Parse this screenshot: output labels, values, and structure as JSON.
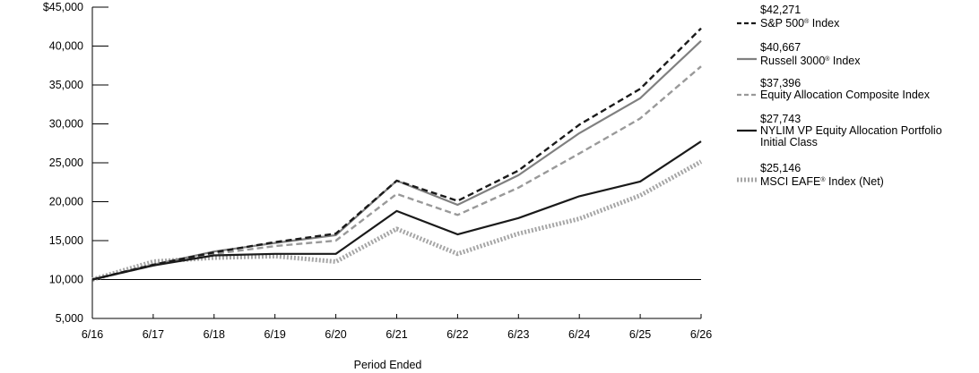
{
  "chart_data": {
    "type": "line",
    "xlabel": "Period Ended",
    "ylabel": "",
    "categories": [
      "6/16",
      "6/17",
      "6/18",
      "6/19",
      "6/20",
      "6/21",
      "6/22",
      "6/23",
      "6/24",
      "6/25",
      "6/26"
    ],
    "ylim": [
      5000,
      45000
    ],
    "y_ticks": [
      5000,
      10000,
      15000,
      20000,
      25000,
      30000,
      35000,
      40000,
      45000
    ],
    "y_tick_labels": [
      "5,000",
      "10,000",
      "15,000",
      "20,000",
      "25,000",
      "30,000",
      "35,000",
      "40,000",
      "$45,000"
    ],
    "grid": false,
    "reference_line": 10000,
    "legend_position": "right",
    "series": [
      {
        "name": "S&P 500® Index",
        "end_label": "$42,271",
        "color": "#1a1a1a",
        "style": "dashed",
        "values": [
          10000,
          11900,
          13500,
          14800,
          15900,
          22700,
          20100,
          24000,
          29900,
          34500,
          42271
        ]
      },
      {
        "name": "Russell 3000®  Index",
        "end_label": "$40,667",
        "color": "#808080",
        "style": "solid",
        "values": [
          10000,
          11900,
          13600,
          14700,
          15700,
          22700,
          19600,
          23400,
          28800,
          33300,
          40667
        ]
      },
      {
        "name": "Equity Allocation Composite Index",
        "end_label": "$37,396",
        "color": "#999999",
        "style": "dashed",
        "values": [
          10000,
          11800,
          13300,
          14300,
          15000,
          21000,
          18300,
          21800,
          26200,
          30700,
          37396
        ]
      },
      {
        "name": "NYLIM VP Equity Allocation Portfolio Initial Class",
        "end_label": "$27,743",
        "color": "#1a1a1a",
        "style": "solid",
        "values": [
          10000,
          11800,
          13100,
          13300,
          13300,
          18800,
          15800,
          17900,
          20700,
          22600,
          27743
        ]
      },
      {
        "name": "MSCI EAFE® Index (Net)",
        "end_label": "$25,146",
        "color": "#a6a6a6",
        "style": "dotted",
        "values": [
          10000,
          12300,
          12800,
          13000,
          12300,
          16500,
          13300,
          15900,
          17800,
          20800,
          25146
        ]
      }
    ]
  },
  "legend": [
    {
      "value": "$42,271",
      "label": "S&P 500",
      "mark": "®",
      "suffix": " Index"
    },
    {
      "value": "$40,667",
      "label": "Russell 3000",
      "mark": "®",
      "suffix": "  Index"
    },
    {
      "value": "$37,396",
      "label": "Equity Allocation Composite Index",
      "mark": "",
      "suffix": ""
    },
    {
      "value": "$27,743",
      "label": "NYLIM VP Equity Allocation Portfolio",
      "label2": "Initial Class",
      "mark": "",
      "suffix": ""
    },
    {
      "value": "$25,146",
      "label": "MSCI EAFE",
      "mark": "®",
      "suffix": " Index (Net)"
    }
  ]
}
